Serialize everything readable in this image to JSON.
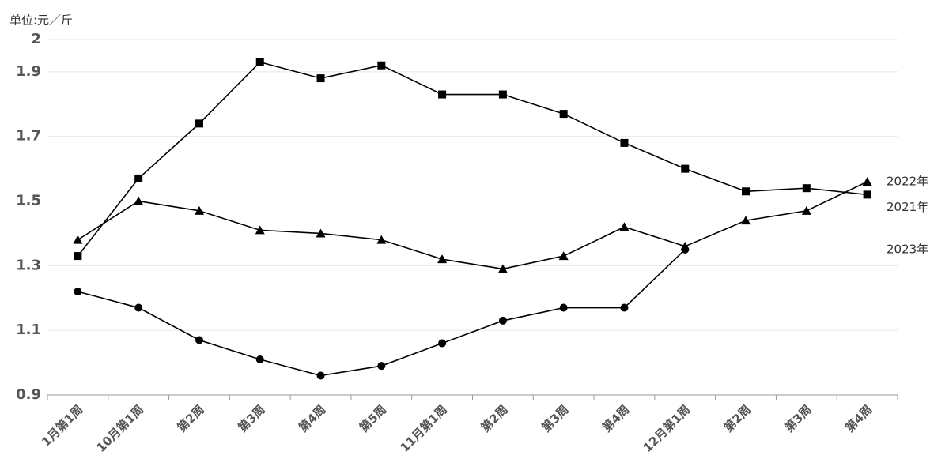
{
  "chart_data": {
    "type": "line",
    "unit_label": "单位:元／斤",
    "categories": [
      "1月第1周",
      "10月第1周",
      "第2周",
      "第3周",
      "第4周",
      "第5周",
      "11月第1周",
      "第2周",
      "第3周",
      "第4周",
      "12月第1周",
      "第2周",
      "第3周",
      "第4周"
    ],
    "series": [
      {
        "name": "2021年",
        "color": "#000000",
        "marker": "square",
        "values": [
          1.33,
          1.57,
          1.74,
          1.93,
          1.88,
          1.92,
          1.83,
          1.83,
          1.77,
          1.68,
          1.6,
          1.53,
          1.54,
          1.52
        ]
      },
      {
        "name": "2022年",
        "color": "#000000",
        "marker": "triangle",
        "values": [
          1.38,
          1.5,
          1.47,
          1.41,
          1.4,
          1.38,
          1.32,
          1.29,
          1.33,
          1.42,
          1.36,
          1.44,
          1.47,
          1.56
        ]
      },
      {
        "name": "2023年",
        "color": "#000000",
        "marker": "circle",
        "values": [
          1.22,
          1.17,
          1.07,
          1.01,
          0.96,
          0.99,
          1.06,
          1.13,
          1.17,
          1.17,
          1.35,
          null,
          null,
          null
        ]
      }
    ],
    "ylim": [
      0.9,
      2
    ],
    "yticks": [
      0.9,
      1.1,
      1.3,
      1.5,
      1.7,
      1.9,
      2
    ],
    "grid": true
  }
}
